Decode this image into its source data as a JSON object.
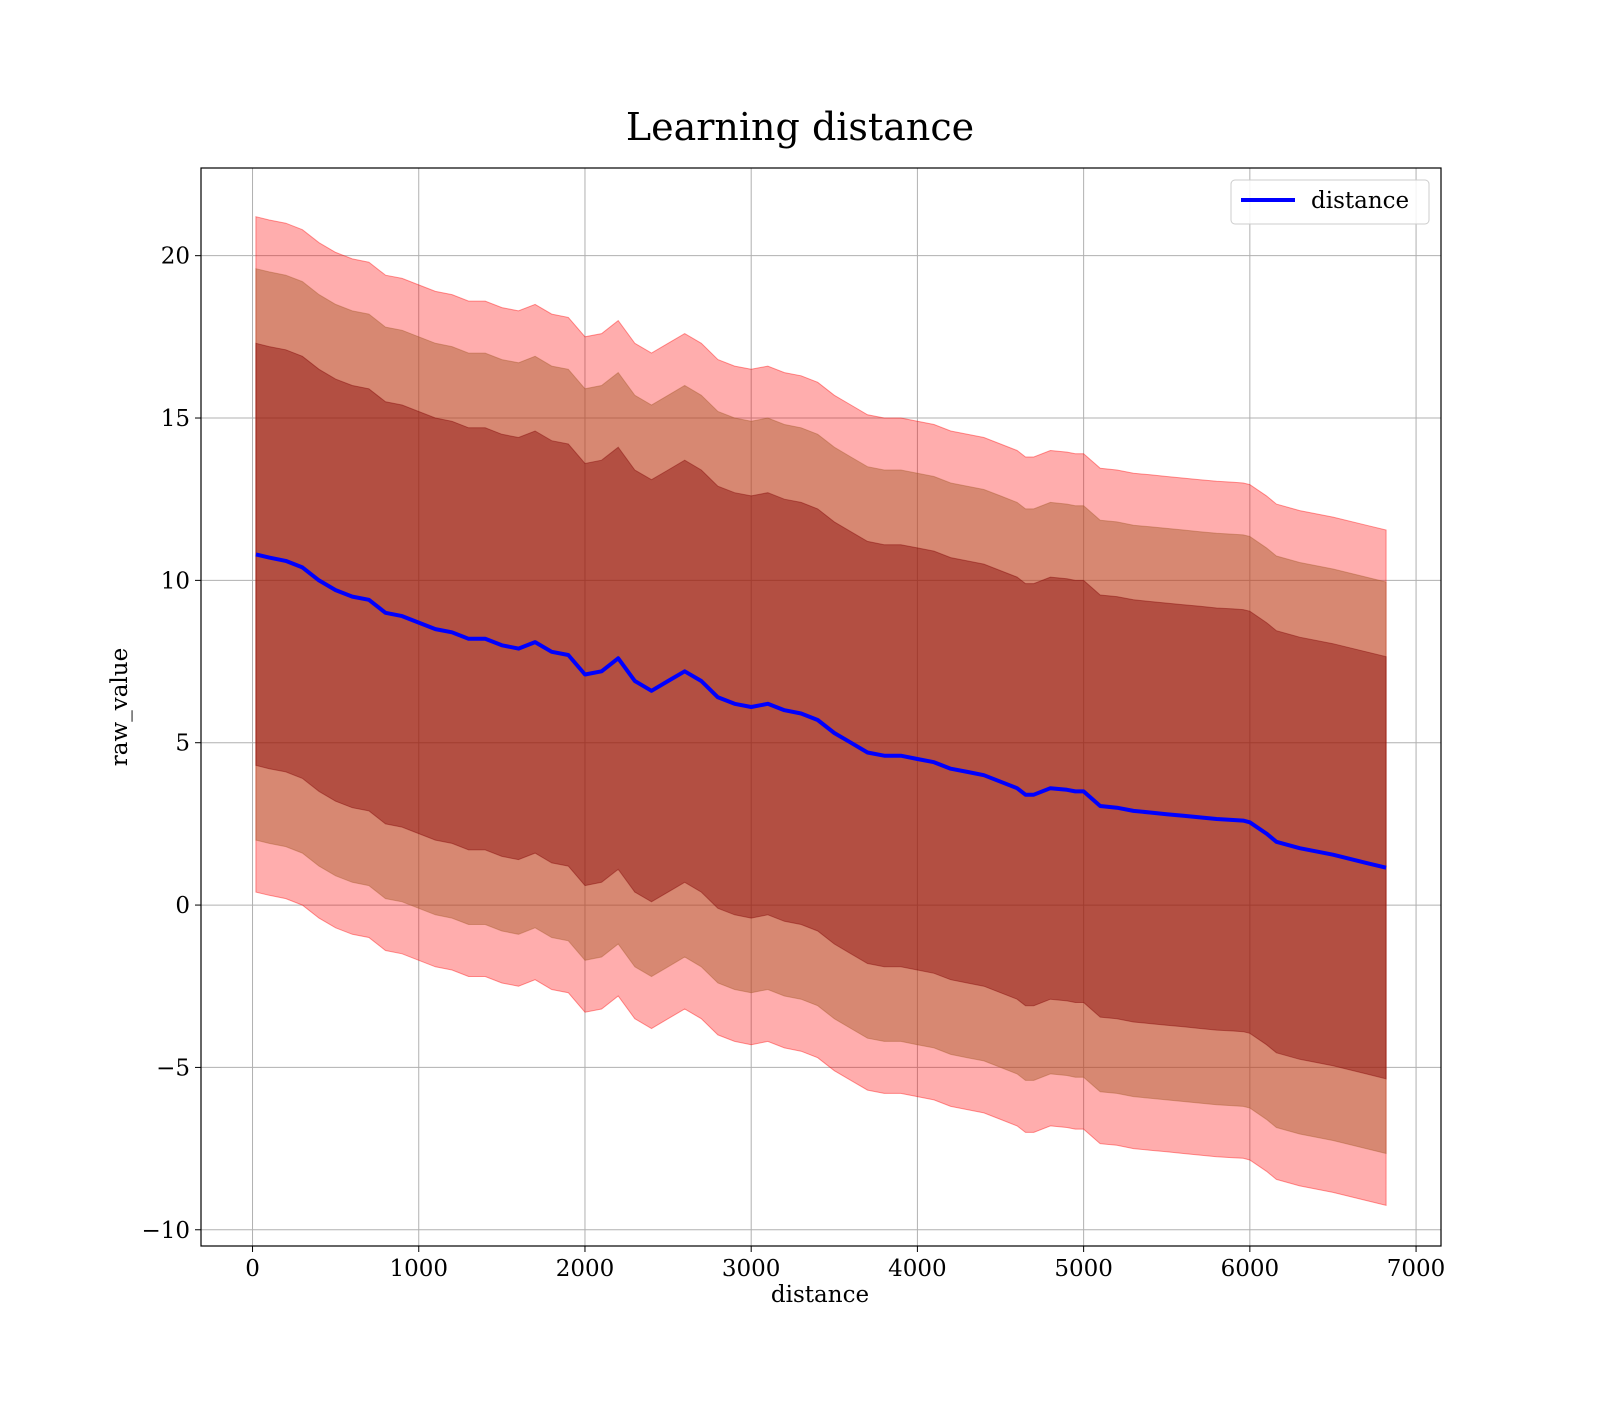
{
  "chart_data": {
    "type": "line",
    "title": "Learning distance",
    "xlabel": "distance",
    "ylabel": "raw_value",
    "xlim": [
      -310,
      7150
    ],
    "ylim": [
      -10.5,
      22.7
    ],
    "xticks": [
      0,
      1000,
      2000,
      3000,
      4000,
      5000,
      6000,
      7000
    ],
    "yticks": [
      -10,
      -5,
      0,
      5,
      10,
      15,
      20
    ],
    "grid": true,
    "legend": {
      "position": "top-right",
      "entries": [
        "distance"
      ]
    },
    "colors": {
      "line": "#0000ff",
      "band": "#ff0000",
      "band_inner": "#800000"
    },
    "series": [
      {
        "name": "distance",
        "x": [
          20,
          100,
          200,
          300,
          400,
          500,
          600,
          700,
          800,
          900,
          1000,
          1100,
          1200,
          1300,
          1400,
          1500,
          1600,
          1700,
          1800,
          1900,
          2000,
          2100,
          2200,
          2300,
          2400,
          2500,
          2600,
          2700,
          2800,
          2900,
          3000,
          3100,
          3200,
          3300,
          3400,
          3500,
          3600,
          3700,
          3800,
          3900,
          4000,
          4100,
          4200,
          4300,
          4400,
          4500,
          4600,
          4650,
          4700,
          4800,
          4900,
          4950,
          5000,
          5100,
          5200,
          5300,
          5400,
          5500,
          5600,
          5700,
          5800,
          5900,
          5960,
          6000,
          6100,
          6160,
          6300,
          6500,
          6700,
          6820
        ],
        "y": [
          10.8,
          10.7,
          10.6,
          10.4,
          10.0,
          9.7,
          9.5,
          9.4,
          9.0,
          8.9,
          8.7,
          8.5,
          8.4,
          8.2,
          8.2,
          8.0,
          7.9,
          8.1,
          7.8,
          7.7,
          7.1,
          7.2,
          7.6,
          6.9,
          6.6,
          6.9,
          7.2,
          6.9,
          6.4,
          6.2,
          6.1,
          6.2,
          6.0,
          5.9,
          5.7,
          5.3,
          5.0,
          4.7,
          4.6,
          4.6,
          4.5,
          4.4,
          4.2,
          4.1,
          4.0,
          3.8,
          3.6,
          3.4,
          3.4,
          3.6,
          3.55,
          3.5,
          3.5,
          3.05,
          3.0,
          2.9,
          2.85,
          2.8,
          2.75,
          2.7,
          2.65,
          2.62,
          2.6,
          2.55,
          2.2,
          1.95,
          1.75,
          1.55,
          1.3,
          1.15
        ]
      }
    ],
    "bands": [
      {
        "level": "outer",
        "half_width": 10.4
      },
      {
        "level": "middle",
        "half_width": 8.8
      },
      {
        "level": "inner",
        "half_width": 6.5
      }
    ]
  }
}
